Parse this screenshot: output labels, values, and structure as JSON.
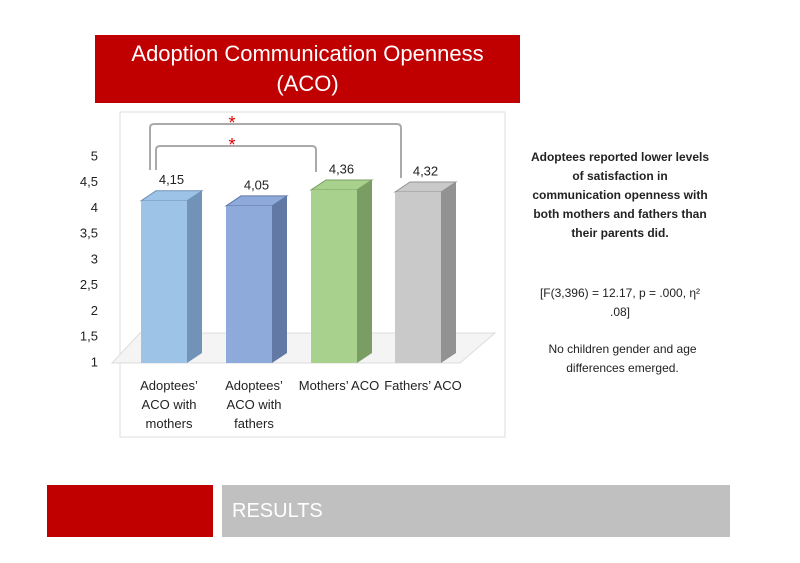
{
  "chart_data": {
    "type": "bar3d",
    "title": "Adoption Communication Openness (ACO)",
    "categories": [
      "Adoptees’ ACO with mothers",
      "Adoptees’ ACO with fathers",
      "Mothers’ ACO",
      "Fathers’ ACO"
    ],
    "values": [
      4.15,
      4.05,
      4.36,
      4.32
    ],
    "value_labels": [
      "4,15",
      "4,05",
      "4,36",
      "4,32"
    ],
    "colors": [
      "#9dc3e6",
      "#8eaadb",
      "#a9d18e",
      "#c9c9c9"
    ],
    "side_colors": [
      "#7193b8",
      "#6279a6",
      "#7a9d63",
      "#929292"
    ],
    "ylim": [
      1,
      5
    ],
    "yticks": [
      1,
      {
        "value": 1.5,
        "label": "1,5"
      },
      2,
      {
        "value": 2.5,
        "label": "2,5"
      },
      3,
      {
        "value": 3.5,
        "label": "3,5"
      },
      4,
      {
        "value": 4.5,
        "label": "4,5"
      },
      5
    ],
    "grid": false,
    "annotations": [
      "*",
      "*"
    ]
  },
  "notes": [
    "Adoptees reported lower levels of satisfaction in communication openness with both mothers and fathers than their parents did.",
    "[F(3,396) = 12.17, p = .000, η² .08]",
    "No children gender and age differences emerged."
  ],
  "footer": {
    "section": "RESULTS"
  }
}
